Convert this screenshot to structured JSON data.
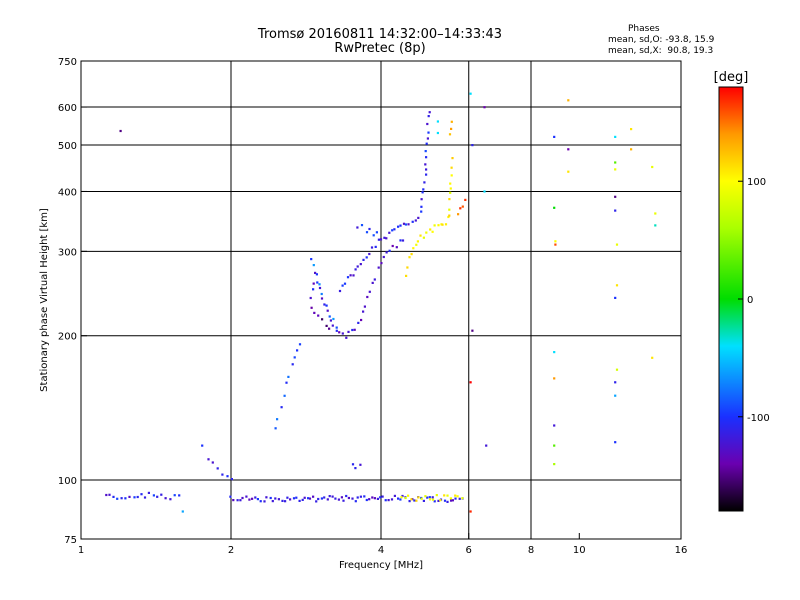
{
  "header": {
    "title_line1": "Tromsø 20160811 14:32:00–14:33:43",
    "title_line2": "RwPretec (8p)",
    "phases_title": "Phases",
    "phases_o": "mean, sd,O: -93.8, 15.9",
    "phases_x": "mean, sd,X:  90.8, 19.3"
  },
  "colorbar": {
    "unit_label": "[deg]",
    "ticks": [
      {
        "label": "100",
        "value": 100
      },
      {
        "label": "0",
        "value": 0
      },
      {
        "label": "-100",
        "value": -100
      }
    ],
    "min": -180,
    "max": 180
  },
  "chart_data": {
    "type": "scatter",
    "title": "Tromsø 20160811 14:32:00–14:33:43",
    "subtitle": "RwPretec (8p)",
    "xlabel": "Frequency [MHz]",
    "ylabel": "Stationary phase Virtual Height [km]",
    "xscale": "log2",
    "yscale": "log",
    "xlim": [
      1,
      16
    ],
    "ylim": [
      75,
      750
    ],
    "xticks": [
      1,
      2,
      4,
      6,
      8,
      10,
      16
    ],
    "yticks": [
      75,
      100,
      200,
      300,
      400,
      500,
      600,
      750
    ],
    "grid_x": [
      2,
      4,
      6,
      8
    ],
    "grid_y": [
      100,
      200,
      300,
      400,
      500,
      600
    ],
    "colorscale": {
      "stops": [
        {
          "value": -180,
          "color": "#000000"
        },
        {
          "value": -140,
          "color": "#6a00b0"
        },
        {
          "value": -100,
          "color": "#1a30ff"
        },
        {
          "value": -40,
          "color": "#00e0ff"
        },
        {
          "value": 0,
          "color": "#00dd00"
        },
        {
          "value": 60,
          "color": "#aaff00"
        },
        {
          "value": 100,
          "color": "#ffff00"
        },
        {
          "value": 140,
          "color": "#ff9900"
        },
        {
          "value": 180,
          "color": "#ff0000"
        }
      ]
    },
    "series": [
      {
        "polyline": [
          [
            1.12,
            92
          ],
          [
            1.3,
            93
          ],
          [
            1.45,
            92.5
          ],
          [
            1.6,
            92
          ]
        ],
        "phase": -110,
        "step": 0.03
      },
      {
        "polyline": [
          [
            2.0,
            91.5
          ],
          [
            2.6,
            91.5
          ],
          [
            3.0,
            91.5
          ],
          [
            3.6,
            91.5
          ],
          [
            4.2,
            91.5
          ],
          [
            4.8,
            91.5
          ],
          [
            5.9,
            91
          ]
        ],
        "phase": -115,
        "step": 0.02
      },
      {
        "polyline": [
          [
            4.4,
            91.5
          ],
          [
            5.0,
            92
          ],
          [
            5.9,
            92
          ]
        ],
        "phase": 100,
        "step": 0.025
      },
      {
        "polyline": [
          [
            1.8,
            110
          ],
          [
            1.92,
            103
          ],
          [
            2.05,
            100
          ]
        ],
        "phase": -105,
        "step": 0.04
      },
      {
        "polyline": [
          [
            2.45,
            128
          ],
          [
            2.55,
            150
          ],
          [
            2.65,
            175
          ],
          [
            2.75,
            195
          ]
        ],
        "phase": -95,
        "step": 0.03
      },
      {
        "polyline": [
          [
            2.9,
            240
          ],
          [
            2.95,
            270
          ],
          [
            3.05,
            240
          ],
          [
            3.2,
            210
          ],
          [
            3.4,
            200
          ],
          [
            3.6,
            210
          ],
          [
            3.75,
            240
          ],
          [
            3.95,
            275
          ],
          [
            4.1,
            300
          ],
          [
            4.3,
            310
          ],
          [
            4.5,
            320
          ]
        ],
        "phase": -120,
        "step": 0.025
      },
      {
        "polyline": [
          [
            2.9,
            290
          ],
          [
            3.0,
            255
          ],
          [
            3.15,
            220
          ],
          [
            3.3,
            205
          ]
        ],
        "phase": -80,
        "step": 0.03
      },
      {
        "polyline": [
          [
            2.9,
            230
          ],
          [
            3.05,
            215
          ],
          [
            3.2,
            205
          ]
        ],
        "phase": -150,
        "step": 0.03
      },
      {
        "polyline": [
          [
            3.3,
            250
          ],
          [
            3.6,
            280
          ],
          [
            3.9,
            310
          ],
          [
            4.2,
            330
          ],
          [
            4.5,
            340
          ],
          [
            4.8,
            360
          ],
          [
            4.9,
            420
          ],
          [
            4.95,
            520
          ],
          [
            5.0,
            610
          ]
        ],
        "phase": -110,
        "step": 0.02
      },
      {
        "polyline": [
          [
            3.6,
            340
          ],
          [
            3.8,
            330
          ],
          [
            4.0,
            325
          ]
        ],
        "phase": -100,
        "step": 0.03
      },
      {
        "polyline": [
          [
            4.5,
            270
          ],
          [
            4.6,
            300
          ],
          [
            4.8,
            320
          ],
          [
            5.0,
            330
          ],
          [
            5.2,
            340
          ],
          [
            5.4,
            345
          ],
          [
            5.5,
            360
          ],
          [
            5.5,
            420
          ],
          [
            5.6,
            480
          ]
        ],
        "phase": 105,
        "step": 0.02
      },
      {
        "polyline": [
          [
            5.5,
            520
          ],
          [
            5.55,
            580
          ]
        ],
        "phase": 130,
        "step": 0.03
      },
      {
        "polyline": [
          [
            5.7,
            355
          ],
          [
            5.85,
            375
          ],
          [
            5.95,
            400
          ]
        ],
        "phase": 160,
        "step": 0.04
      },
      {
        "polyline": [
          [
            3.5,
            107
          ],
          [
            3.7,
            106
          ]
        ],
        "phase": -115,
        "step": 0.03
      }
    ],
    "points": [
      {
        "x": 1.2,
        "y": 535,
        "phase": -150
      },
      {
        "x": 1.6,
        "y": 86,
        "phase": -60
      },
      {
        "x": 1.75,
        "y": 118,
        "phase": -100
      },
      {
        "x": 2.75,
        "y": 192,
        "phase": -95
      },
      {
        "x": 5.2,
        "y": 560,
        "phase": -40
      },
      {
        "x": 5.2,
        "y": 530,
        "phase": -40
      },
      {
        "x": 6.05,
        "y": 640,
        "phase": -40
      },
      {
        "x": 6.1,
        "y": 500,
        "phase": -110
      },
      {
        "x": 6.1,
        "y": 205,
        "phase": -150
      },
      {
        "x": 6.05,
        "y": 160,
        "phase": 180
      },
      {
        "x": 6.05,
        "y": 86,
        "phase": 170
      },
      {
        "x": 6.45,
        "y": 600,
        "phase": -140
      },
      {
        "x": 6.45,
        "y": 400,
        "phase": -40
      },
      {
        "x": 6.5,
        "y": 118,
        "phase": -120
      },
      {
        "x": 8.9,
        "y": 520,
        "phase": -100
      },
      {
        "x": 8.9,
        "y": 370,
        "phase": 0
      },
      {
        "x": 8.95,
        "y": 315,
        "phase": 100
      },
      {
        "x": 8.95,
        "y": 310,
        "phase": 160
      },
      {
        "x": 8.9,
        "y": 185,
        "phase": -40
      },
      {
        "x": 8.9,
        "y": 163,
        "phase": 140
      },
      {
        "x": 8.9,
        "y": 130,
        "phase": -120
      },
      {
        "x": 8.9,
        "y": 118,
        "phase": 30
      },
      {
        "x": 8.9,
        "y": 108,
        "phase": 60
      },
      {
        "x": 9.5,
        "y": 620,
        "phase": 130
      },
      {
        "x": 9.5,
        "y": 490,
        "phase": -140
      },
      {
        "x": 9.5,
        "y": 440,
        "phase": 110
      },
      {
        "x": 11.8,
        "y": 520,
        "phase": -40
      },
      {
        "x": 11.8,
        "y": 460,
        "phase": 30
      },
      {
        "x": 11.8,
        "y": 445,
        "phase": 90
      },
      {
        "x": 11.8,
        "y": 390,
        "phase": -150
      },
      {
        "x": 11.8,
        "y": 365,
        "phase": -110
      },
      {
        "x": 11.9,
        "y": 310,
        "phase": 90
      },
      {
        "x": 11.9,
        "y": 255,
        "phase": 110
      },
      {
        "x": 11.8,
        "y": 240,
        "phase": -100
      },
      {
        "x": 11.9,
        "y": 170,
        "phase": 80
      },
      {
        "x": 11.8,
        "y": 160,
        "phase": -110
      },
      {
        "x": 11.8,
        "y": 150,
        "phase": -60
      },
      {
        "x": 11.8,
        "y": 120,
        "phase": -100
      },
      {
        "x": 12.7,
        "y": 540,
        "phase": 110
      },
      {
        "x": 12.7,
        "y": 490,
        "phase": 130
      },
      {
        "x": 14.0,
        "y": 450,
        "phase": 90
      },
      {
        "x": 14.2,
        "y": 360,
        "phase": 90
      },
      {
        "x": 14.2,
        "y": 340,
        "phase": -30
      },
      {
        "x": 14.0,
        "y": 180,
        "phase": 110
      }
    ]
  }
}
